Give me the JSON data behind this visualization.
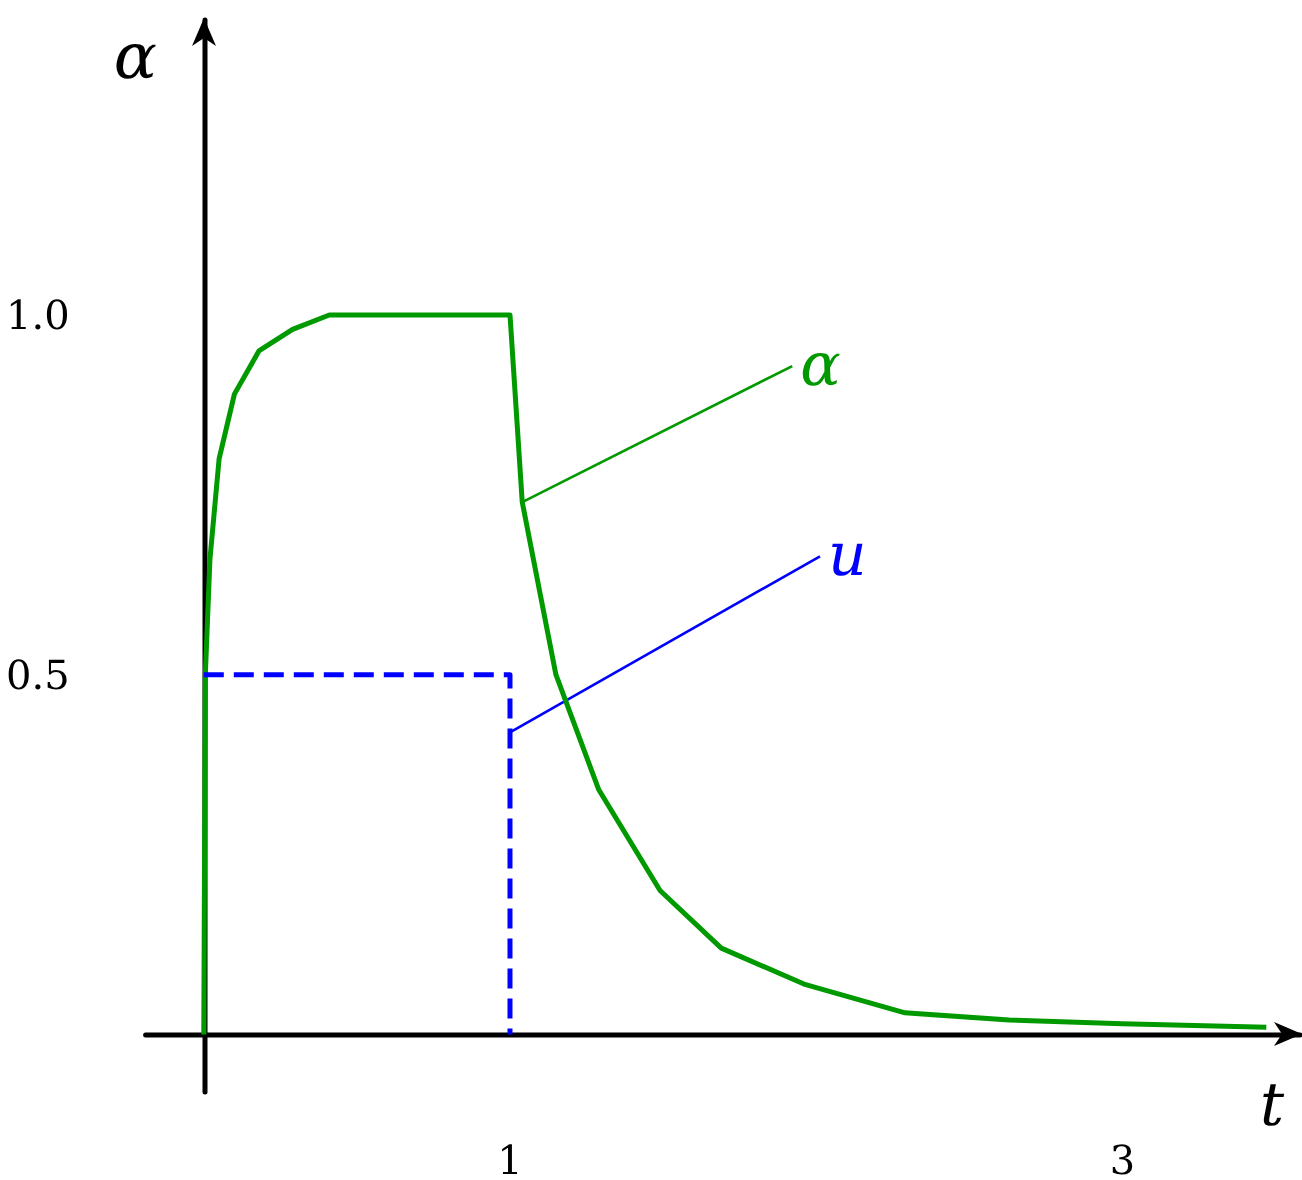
{
  "chart_data": {
    "type": "line",
    "xlabel": "t",
    "ylabel": "α",
    "xlim": [
      -0.19,
      3.58
    ],
    "ylim": [
      -0.08,
      1.41
    ],
    "xticks": [
      1,
      3
    ],
    "yticks": [
      0.5,
      {
        "value": 1,
        "label": "1.0"
      }
    ],
    "grid": false,
    "legend": false,
    "marker": "none",
    "series": [
      {
        "name": "α",
        "color": "#009900",
        "line_style": "solid",
        "x": [
          0,
          0.005,
          0.02,
          0.05,
          0.1,
          0.18,
          0.29,
          0.41,
          1.0,
          1.04,
          1.15,
          1.29,
          1.49,
          1.69,
          1.96,
          2.29,
          2.63,
          3.0,
          3.47
        ],
        "values": [
          0,
          0.5,
          0.66,
          0.8,
          0.89,
          0.95,
          0.98,
          1.0,
          1.0,
          0.74,
          0.5,
          0.34,
          0.2,
          0.12,
          0.07,
          0.03,
          0.02,
          0.015,
          0.01
        ]
      },
      {
        "name": "u",
        "color": "#0000ff",
        "line_style": "dashed",
        "x": [
          0,
          1,
          1
        ],
        "values": [
          0.5,
          0.5,
          0
        ]
      }
    ]
  }
}
